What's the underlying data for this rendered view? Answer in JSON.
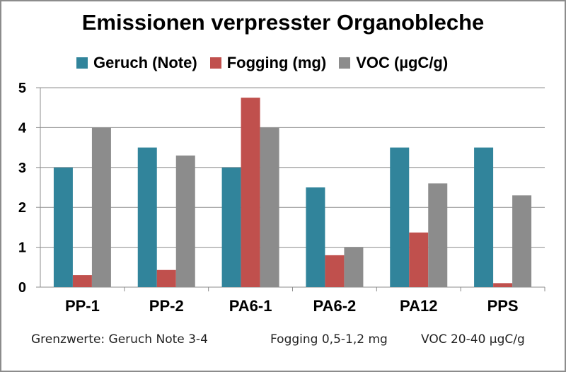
{
  "chart_data": {
    "type": "bar",
    "title": "Emissionen verpresster Organobleche",
    "categories": [
      "PP-1",
      "PP-2",
      "PA6-1",
      "PA6-2",
      "PA12",
      "PPS"
    ],
    "series": [
      {
        "name": "Geruch (Note)",
        "color": "#31849b",
        "values": [
          3.0,
          3.5,
          3.0,
          2.5,
          3.5,
          3.5
        ]
      },
      {
        "name": "Fogging (mg)",
        "color": "#c0504d",
        "values": [
          0.3,
          0.43,
          4.75,
          0.8,
          1.37,
          0.1
        ]
      },
      {
        "name": "VOC (µgC/g)",
        "color": "#8c8c8c",
        "values": [
          4.0,
          3.3,
          4.0,
          1.0,
          2.6,
          2.3
        ]
      }
    ],
    "ylim": [
      0,
      5
    ],
    "yticks": [
      "0",
      "1",
      "2",
      "3",
      "4",
      "5"
    ],
    "grid": true,
    "legend_position": "top"
  },
  "footnote": {
    "part1": "Grenzwerte: Geruch Note 3-4",
    "part2": "Fogging 0,5-1,2 mg",
    "part3": "VOC 20-40 µgC/g"
  }
}
